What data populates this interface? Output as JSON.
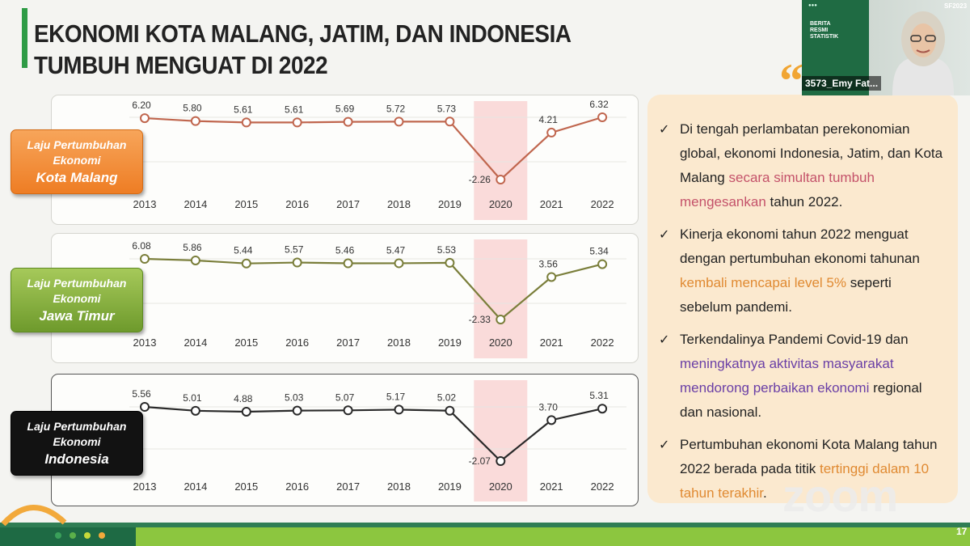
{
  "slide": {
    "title_line1": "EKONOMI KOTA MALANG, JATIM, DAN INDONESIA",
    "title_line2": "TUMBUH MENGUAT DI 2022",
    "page_number": "17",
    "accent_color": "#2e9b45"
  },
  "chart_data": [
    {
      "type": "line",
      "label": [
        "Laju Pertumbuhan",
        "Ekonomi",
        "Kota Malang"
      ],
      "categories": [
        "2013",
        "2014",
        "2015",
        "2016",
        "2017",
        "2018",
        "2019",
        "2020",
        "2021",
        "2022"
      ],
      "values": [
        6.2,
        5.8,
        5.61,
        5.61,
        5.69,
        5.72,
        5.73,
        -2.26,
        4.21,
        6.32
      ],
      "value_labels": [
        "6.20",
        "5.80",
        "5.61",
        "5.61",
        "5.69",
        "5.72",
        "5.73",
        "-2.26",
        "4.21",
        "6.32"
      ],
      "color": "#c0664e",
      "highlight_category": "2020",
      "grid": true
    },
    {
      "type": "line",
      "label": [
        "Laju Pertumbuhan",
        "Ekonomi",
        "Jawa Timur"
      ],
      "categories": [
        "2013",
        "2014",
        "2015",
        "2016",
        "2017",
        "2018",
        "2019",
        "2020",
        "2021",
        "2022"
      ],
      "values": [
        6.08,
        5.86,
        5.44,
        5.57,
        5.46,
        5.47,
        5.53,
        -2.33,
        3.56,
        5.34
      ],
      "value_labels": [
        "6.08",
        "5.86",
        "5.44",
        "5.57",
        "5.46",
        "5.47",
        "5.53",
        "-2.33",
        "3.56",
        "5.34"
      ],
      "color": "#7a7e3a",
      "highlight_category": "2020",
      "grid": true
    },
    {
      "type": "line",
      "label": [
        "Laju Pertumbuhan",
        "Ekonomi",
        "Indonesia"
      ],
      "categories": [
        "2013",
        "2014",
        "2015",
        "2016",
        "2017",
        "2018",
        "2019",
        "2020",
        "2021",
        "2022"
      ],
      "values": [
        5.56,
        5.01,
        4.88,
        5.03,
        5.07,
        5.17,
        5.02,
        -2.07,
        3.7,
        5.31
      ],
      "value_labels": [
        "5.56",
        "5.01",
        "4.88",
        "5.03",
        "5.07",
        "5.17",
        "5.02",
        "-2.07",
        "3.70",
        "5.31"
      ],
      "color": "#2a2a2a",
      "highlight_category": "2020",
      "grid": true
    }
  ],
  "bullets": [
    {
      "parts": [
        {
          "text": "Di tengah perlambatan perekonomian global, ekonomi Indonesia, Jatim, dan Kota Malang ",
          "hl": ""
        },
        {
          "text": "secara simultan tumbuh mengesankan",
          "hl": "pink"
        },
        {
          "text": " tahun 2022.",
          "hl": ""
        }
      ]
    },
    {
      "parts": [
        {
          "text": "Kinerja ekonomi tahun 2022 menguat dengan pertumbuhan ekonomi tahunan ",
          "hl": ""
        },
        {
          "text": "kembali mencapai level 5%",
          "hl": "orange"
        },
        {
          "text": " seperti sebelum pandemi.",
          "hl": ""
        }
      ]
    },
    {
      "parts": [
        {
          "text": "Terkendalinya Pandemi Covid-19 dan ",
          "hl": ""
        },
        {
          "text": "meningkatnya aktivitas masyarakat mendorong perbaikan ekonomi",
          "hl": "purple"
        },
        {
          "text": " regional dan nasional.",
          "hl": ""
        }
      ]
    },
    {
      "parts": [
        {
          "text": "Pertumbuhan ekonomi Kota Malang tahun 2022 berada pada titik ",
          "hl": ""
        },
        {
          "text": "tertinggi dalam 10 tahun terakhir",
          "hl": "orange"
        },
        {
          "text": ".",
          "hl": ""
        }
      ]
    }
  ],
  "webcam": {
    "participant_name": "3573_Emy Fat...",
    "slide_year": "SF2023",
    "slide_title": [
      "BERITA",
      "RESMI",
      "STATISTIK"
    ]
  },
  "zoom_watermark": "zoom"
}
